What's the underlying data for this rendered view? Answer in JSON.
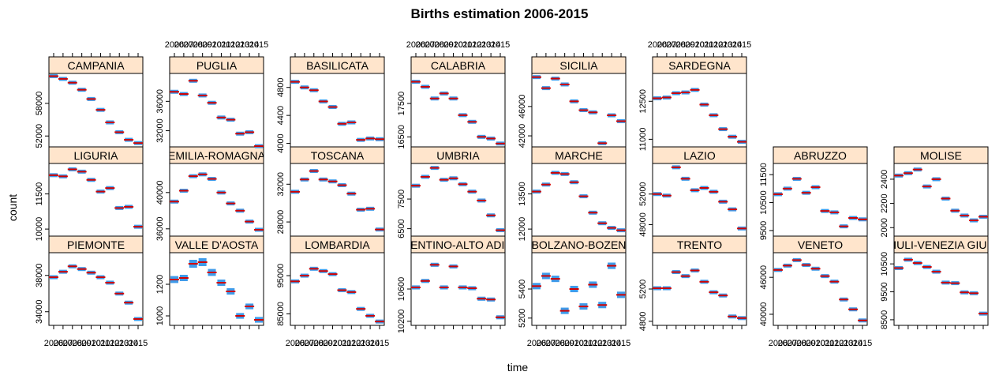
{
  "chart_data": {
    "type": "scatter",
    "title": "Births estimation 2006-2015",
    "xlabel": "time",
    "ylabel": "count",
    "x_ticks": [
      "2006",
      "2007",
      "2008",
      "2009",
      "2010",
      "2011",
      "2012",
      "2013",
      "2014",
      "2015"
    ],
    "colors": {
      "band": "#3f9bea",
      "point": "#d10000",
      "strip": "#ffe5cc",
      "frame": "#000000"
    },
    "panels": [
      {
        "name": "PIEMONTE",
        "yticks": [
          34000,
          38000
        ],
        "ylim": [
          32500,
          40500
        ],
        "values": [
          37800,
          38400,
          39000,
          38700,
          38300,
          37800,
          37200,
          36000,
          35000,
          33200
        ]
      },
      {
        "name": "VALLE D'AOSTA",
        "yticks": [
          1000,
          1200
        ],
        "ylim": [
          940,
          1400
        ],
        "values": [
          1230,
          1240,
          1330,
          1340,
          1275,
          1210,
          1155,
          1000,
          1060,
          975
        ],
        "band_size": [
          22,
          20,
          25,
          25,
          22,
          20,
          20,
          18,
          18,
          18
        ]
      },
      {
        "name": "LOMBARDIA",
        "yticks": [
          85000,
          95000
        ],
        "ylim": [
          82000,
          101000
        ],
        "values": [
          93500,
          95000,
          96800,
          96200,
          95400,
          91200,
          90700,
          86300,
          84500,
          83000
        ]
      },
      {
        "name": "TRENTINO-ALTO ADIGE",
        "yticks": [
          10200,
          10600
        ],
        "ylim": [
          10150,
          11050
        ],
        "values": [
          10620,
          10700,
          10900,
          10620,
          10880,
          10620,
          10610,
          10480,
          10470,
          10250
        ],
        "band_size": [
          25,
          25,
          25,
          25,
          25,
          25,
          25,
          25,
          25,
          25
        ]
      },
      {
        "name": "BOLZANO-BOZEN",
        "yticks": [
          5200,
          5400
        ],
        "ylim": [
          5150,
          5650
        ],
        "values": [
          5420,
          5490,
          5470,
          5250,
          5400,
          5280,
          5430,
          5290,
          5560,
          5360
        ],
        "band_size": [
          22,
          22,
          22,
          22,
          22,
          22,
          22,
          22,
          22,
          22
        ]
      },
      {
        "name": "TRENTO",
        "yticks": [
          4800,
          5200
        ],
        "ylim": [
          4750,
          5650
        ],
        "values": [
          5210,
          5210,
          5410,
          5360,
          5430,
          5290,
          5160,
          5120,
          4860,
          4840
        ],
        "band_size": [
          18,
          18,
          18,
          18,
          18,
          18,
          18,
          18,
          18,
          18
        ]
      },
      {
        "name": "VENETO",
        "yticks": [
          40000,
          46000
        ],
        "ylim": [
          38200,
          50000
        ],
        "values": [
          47200,
          47900,
          48800,
          48000,
          47400,
          46200,
          45300,
          42400,
          40800,
          39000
        ]
      },
      {
        "name": "FRIULI-VENEZIA GIULIA",
        "yticks": [
          8500,
          9500,
          10500
        ],
        "ylim": [
          8300,
          10900
        ],
        "values": [
          10350,
          10650,
          10530,
          10390,
          10220,
          9830,
          9810,
          9480,
          9450,
          8720
        ]
      },
      {
        "name": "LIGURIA",
        "yticks": [
          10000,
          11500
        ],
        "ylim": [
          9700,
          12800
        ],
        "values": [
          12300,
          12250,
          12550,
          12450,
          12100,
          11600,
          11750,
          10900,
          10950,
          10100
        ]
      },
      {
        "name": "EMILIA-ROMAGNA",
        "yticks": [
          36000,
          40000
        ],
        "ylim": [
          35200,
          43200
        ],
        "values": [
          39000,
          40200,
          41800,
          42000,
          41500,
          40000,
          38800,
          38000,
          36800,
          35900
        ]
      },
      {
        "name": "TOSCANA",
        "yticks": [
          28000,
          32000
        ],
        "ylim": [
          26500,
          34200
        ],
        "values": [
          31200,
          32500,
          33400,
          32500,
          32300,
          31900,
          31000,
          29300,
          29400,
          27200
        ]
      },
      {
        "name": "UMBRIA",
        "yticks": [
          6500,
          7500
        ],
        "ylim": [
          6250,
          8700
        ],
        "values": [
          7950,
          8250,
          8550,
          8150,
          8200,
          8000,
          7750,
          7450,
          6950,
          6450
        ]
      },
      {
        "name": "MARCHE",
        "yticks": [
          12000,
          13500
        ],
        "ylim": [
          11700,
          14800
        ],
        "values": [
          13600,
          13900,
          14400,
          14350,
          14000,
          13400,
          12700,
          12250,
          12050,
          11950
        ]
      },
      {
        "name": "LAZIO",
        "yticks": [
          48000,
          52000
        ],
        "ylim": [
          46500,
          56000
        ],
        "values": [
          52000,
          51800,
          55500,
          54000,
          52500,
          52800,
          52300,
          51000,
          50000,
          47500
        ]
      },
      {
        "name": "ABRUZZO",
        "yticks": [
          9500,
          10500,
          11500
        ],
        "ylim": [
          9300,
          11900
        ],
        "values": [
          10800,
          11000,
          11350,
          10850,
          11050,
          10200,
          10150,
          9650,
          9950,
          9900
        ]
      },
      {
        "name": "MOLISE",
        "yticks": [
          2000,
          2200,
          2400
        ],
        "ylim": [
          1930,
          2530
        ],
        "values": [
          2430,
          2450,
          2480,
          2340,
          2400,
          2240,
          2140,
          2100,
          2060,
          2090
        ],
        "band_size": [
          15,
          15,
          15,
          15,
          15,
          15,
          15,
          15,
          15,
          15
        ]
      },
      {
        "name": "CAMPANIA",
        "yticks": [
          52000,
          58000
        ],
        "ylim": [
          50000,
          63500
        ],
        "values": [
          63000,
          62500,
          61800,
          60500,
          58800,
          56800,
          54500,
          52700,
          51300,
          50700
        ]
      },
      {
        "name": "PUGLIA",
        "yticks": [
          32000,
          36000
        ],
        "ylim": [
          29800,
          39800
        ],
        "values": [
          37300,
          37000,
          38800,
          36800,
          35800,
          33800,
          33500,
          31600,
          31800,
          29900
        ]
      },
      {
        "name": "BASILICATA",
        "yticks": [
          4000,
          4400,
          4800
        ],
        "ylim": [
          3950,
          5000
        ],
        "values": [
          4880,
          4800,
          4760,
          4600,
          4520,
          4280,
          4300,
          4050,
          4070,
          4060
        ],
        "band_size": [
          10,
          10,
          10,
          10,
          10,
          10,
          10,
          10,
          10,
          10
        ]
      },
      {
        "name": "CALABRIA",
        "yticks": [
          16500,
          17500
        ],
        "ylim": [
          16200,
          18400
        ],
        "values": [
          18150,
          18000,
          17650,
          17800,
          17650,
          17150,
          16950,
          16500,
          16450,
          16300
        ],
        "band_size": [
          10,
          10,
          10,
          10,
          10,
          10,
          10,
          10,
          10,
          10
        ]
      },
      {
        "name": "SICILIA",
        "yticks": [
          42000,
          46000
        ],
        "ylim": [
          40500,
          50500
        ],
        "values": [
          50000,
          48500,
          49800,
          49000,
          46700,
          45500,
          45200,
          41000,
          44800,
          44000
        ]
      },
      {
        "name": "SARDEGNA",
        "yticks": [
          11000,
          12500
        ],
        "ylim": [
          10700,
          13600
        ],
        "values": [
          12620,
          12650,
          12820,
          12850,
          12950,
          12370,
          11950,
          11400,
          11100,
          10900
        ]
      }
    ]
  }
}
